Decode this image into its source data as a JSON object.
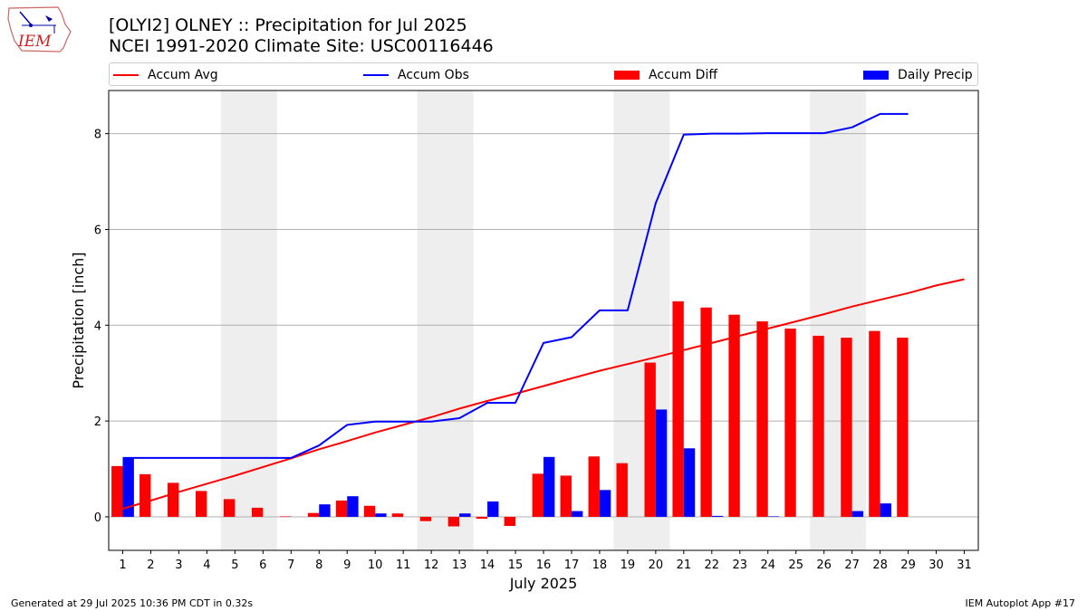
{
  "header": {
    "title_line1": "[OLYI2] OLNEY :: Precipitation for Jul 2025",
    "title_line2": "NCEI 1991-2020 Climate Site: USC00116446"
  },
  "logo": {
    "text": "IEM",
    "icon": "iowa-state-weather-logo"
  },
  "footer": {
    "left": "Generated at 29 Jul 2025 10:36 PM CDT in 0.32s",
    "right": "IEM Autoplot App #17"
  },
  "colors": {
    "avg": "#ff0000",
    "obs": "#0000ff",
    "diff": "#ff0000",
    "daily": "#0000ff",
    "weekend": "#eeeeee",
    "grid": "#b0b0b0"
  },
  "chart_data": {
    "type": "bar",
    "xlabel": "July 2025",
    "ylabel": "Precipitation [inch]",
    "xlim": [
      0.5,
      31.5
    ],
    "ylim": [
      -0.7,
      8.9
    ],
    "yticks": [
      0,
      2,
      4,
      6,
      8
    ],
    "grid": "horizontal",
    "legend_position": "top",
    "weekend_shading": [
      [
        5,
        6
      ],
      [
        12,
        13
      ],
      [
        19,
        20
      ],
      [
        26,
        27
      ]
    ],
    "days": [
      1,
      2,
      3,
      4,
      5,
      6,
      7,
      8,
      9,
      10,
      11,
      12,
      13,
      14,
      15,
      16,
      17,
      18,
      19,
      20,
      21,
      22,
      23,
      24,
      25,
      26,
      27,
      28,
      29,
      30,
      31
    ],
    "series": [
      {
        "name": "Accum Avg",
        "kind": "line",
        "color": "#ff0000",
        "x": [
          1,
          2,
          3,
          4,
          5,
          6,
          7,
          8,
          9,
          10,
          11,
          12,
          13,
          14,
          15,
          16,
          17,
          18,
          19,
          20,
          21,
          22,
          23,
          24,
          25,
          26,
          27,
          28,
          29,
          30,
          31
        ],
        "values": [
          0.17,
          0.34,
          0.52,
          0.69,
          0.86,
          1.04,
          1.22,
          1.41,
          1.58,
          1.76,
          1.92,
          2.08,
          2.26,
          2.42,
          2.57,
          2.73,
          2.89,
          3.05,
          3.19,
          3.33,
          3.48,
          3.63,
          3.78,
          3.93,
          4.08,
          4.23,
          4.39,
          4.53,
          4.67,
          4.83,
          4.96
        ]
      },
      {
        "name": "Accum Obs",
        "kind": "line",
        "color": "#0000ff",
        "x": [
          1,
          2,
          3,
          4,
          5,
          6,
          7,
          8,
          9,
          10,
          11,
          12,
          13,
          14,
          15,
          16,
          17,
          18,
          19,
          20,
          21,
          22,
          23,
          24,
          25,
          26,
          27,
          28,
          29
        ],
        "values": [
          1.23,
          1.23,
          1.23,
          1.23,
          1.23,
          1.23,
          1.23,
          1.49,
          1.92,
          1.99,
          1.99,
          1.99,
          2.06,
          2.38,
          2.38,
          3.63,
          3.75,
          4.31,
          4.31,
          6.55,
          7.98,
          8.0,
          8.0,
          8.01,
          8.01,
          8.01,
          8.13,
          8.41,
          8.41
        ]
      },
      {
        "name": "Accum Diff",
        "kind": "bar",
        "color": "#ff0000",
        "x": [
          1,
          2,
          3,
          4,
          5,
          6,
          7,
          8,
          9,
          10,
          11,
          12,
          13,
          14,
          15,
          16,
          17,
          18,
          19,
          20,
          21,
          22,
          23,
          24,
          25,
          26,
          27,
          28,
          29
        ],
        "values": [
          1.06,
          0.89,
          0.71,
          0.54,
          0.37,
          0.19,
          0.01,
          0.08,
          0.34,
          0.23,
          0.07,
          -0.09,
          -0.2,
          -0.04,
          -0.19,
          0.9,
          0.86,
          1.26,
          1.12,
          3.22,
          4.5,
          4.37,
          4.22,
          4.08,
          3.93,
          3.78,
          3.74,
          3.88,
          3.74
        ]
      },
      {
        "name": "Daily Precip",
        "kind": "bar",
        "color": "#0000ff",
        "x": [
          1,
          2,
          3,
          4,
          5,
          6,
          7,
          8,
          9,
          10,
          11,
          12,
          13,
          14,
          15,
          16,
          17,
          18,
          19,
          20,
          21,
          22,
          23,
          24,
          25,
          26,
          27,
          28,
          29
        ],
        "values": [
          1.23,
          0,
          0,
          0,
          0,
          0,
          0,
          0.26,
          0.43,
          0.07,
          0,
          0,
          0.07,
          0.32,
          0,
          1.25,
          0.12,
          0.56,
          0,
          2.24,
          1.43,
          0.02,
          0,
          0.01,
          0,
          0,
          0.12,
          0.28,
          0
        ]
      }
    ]
  }
}
